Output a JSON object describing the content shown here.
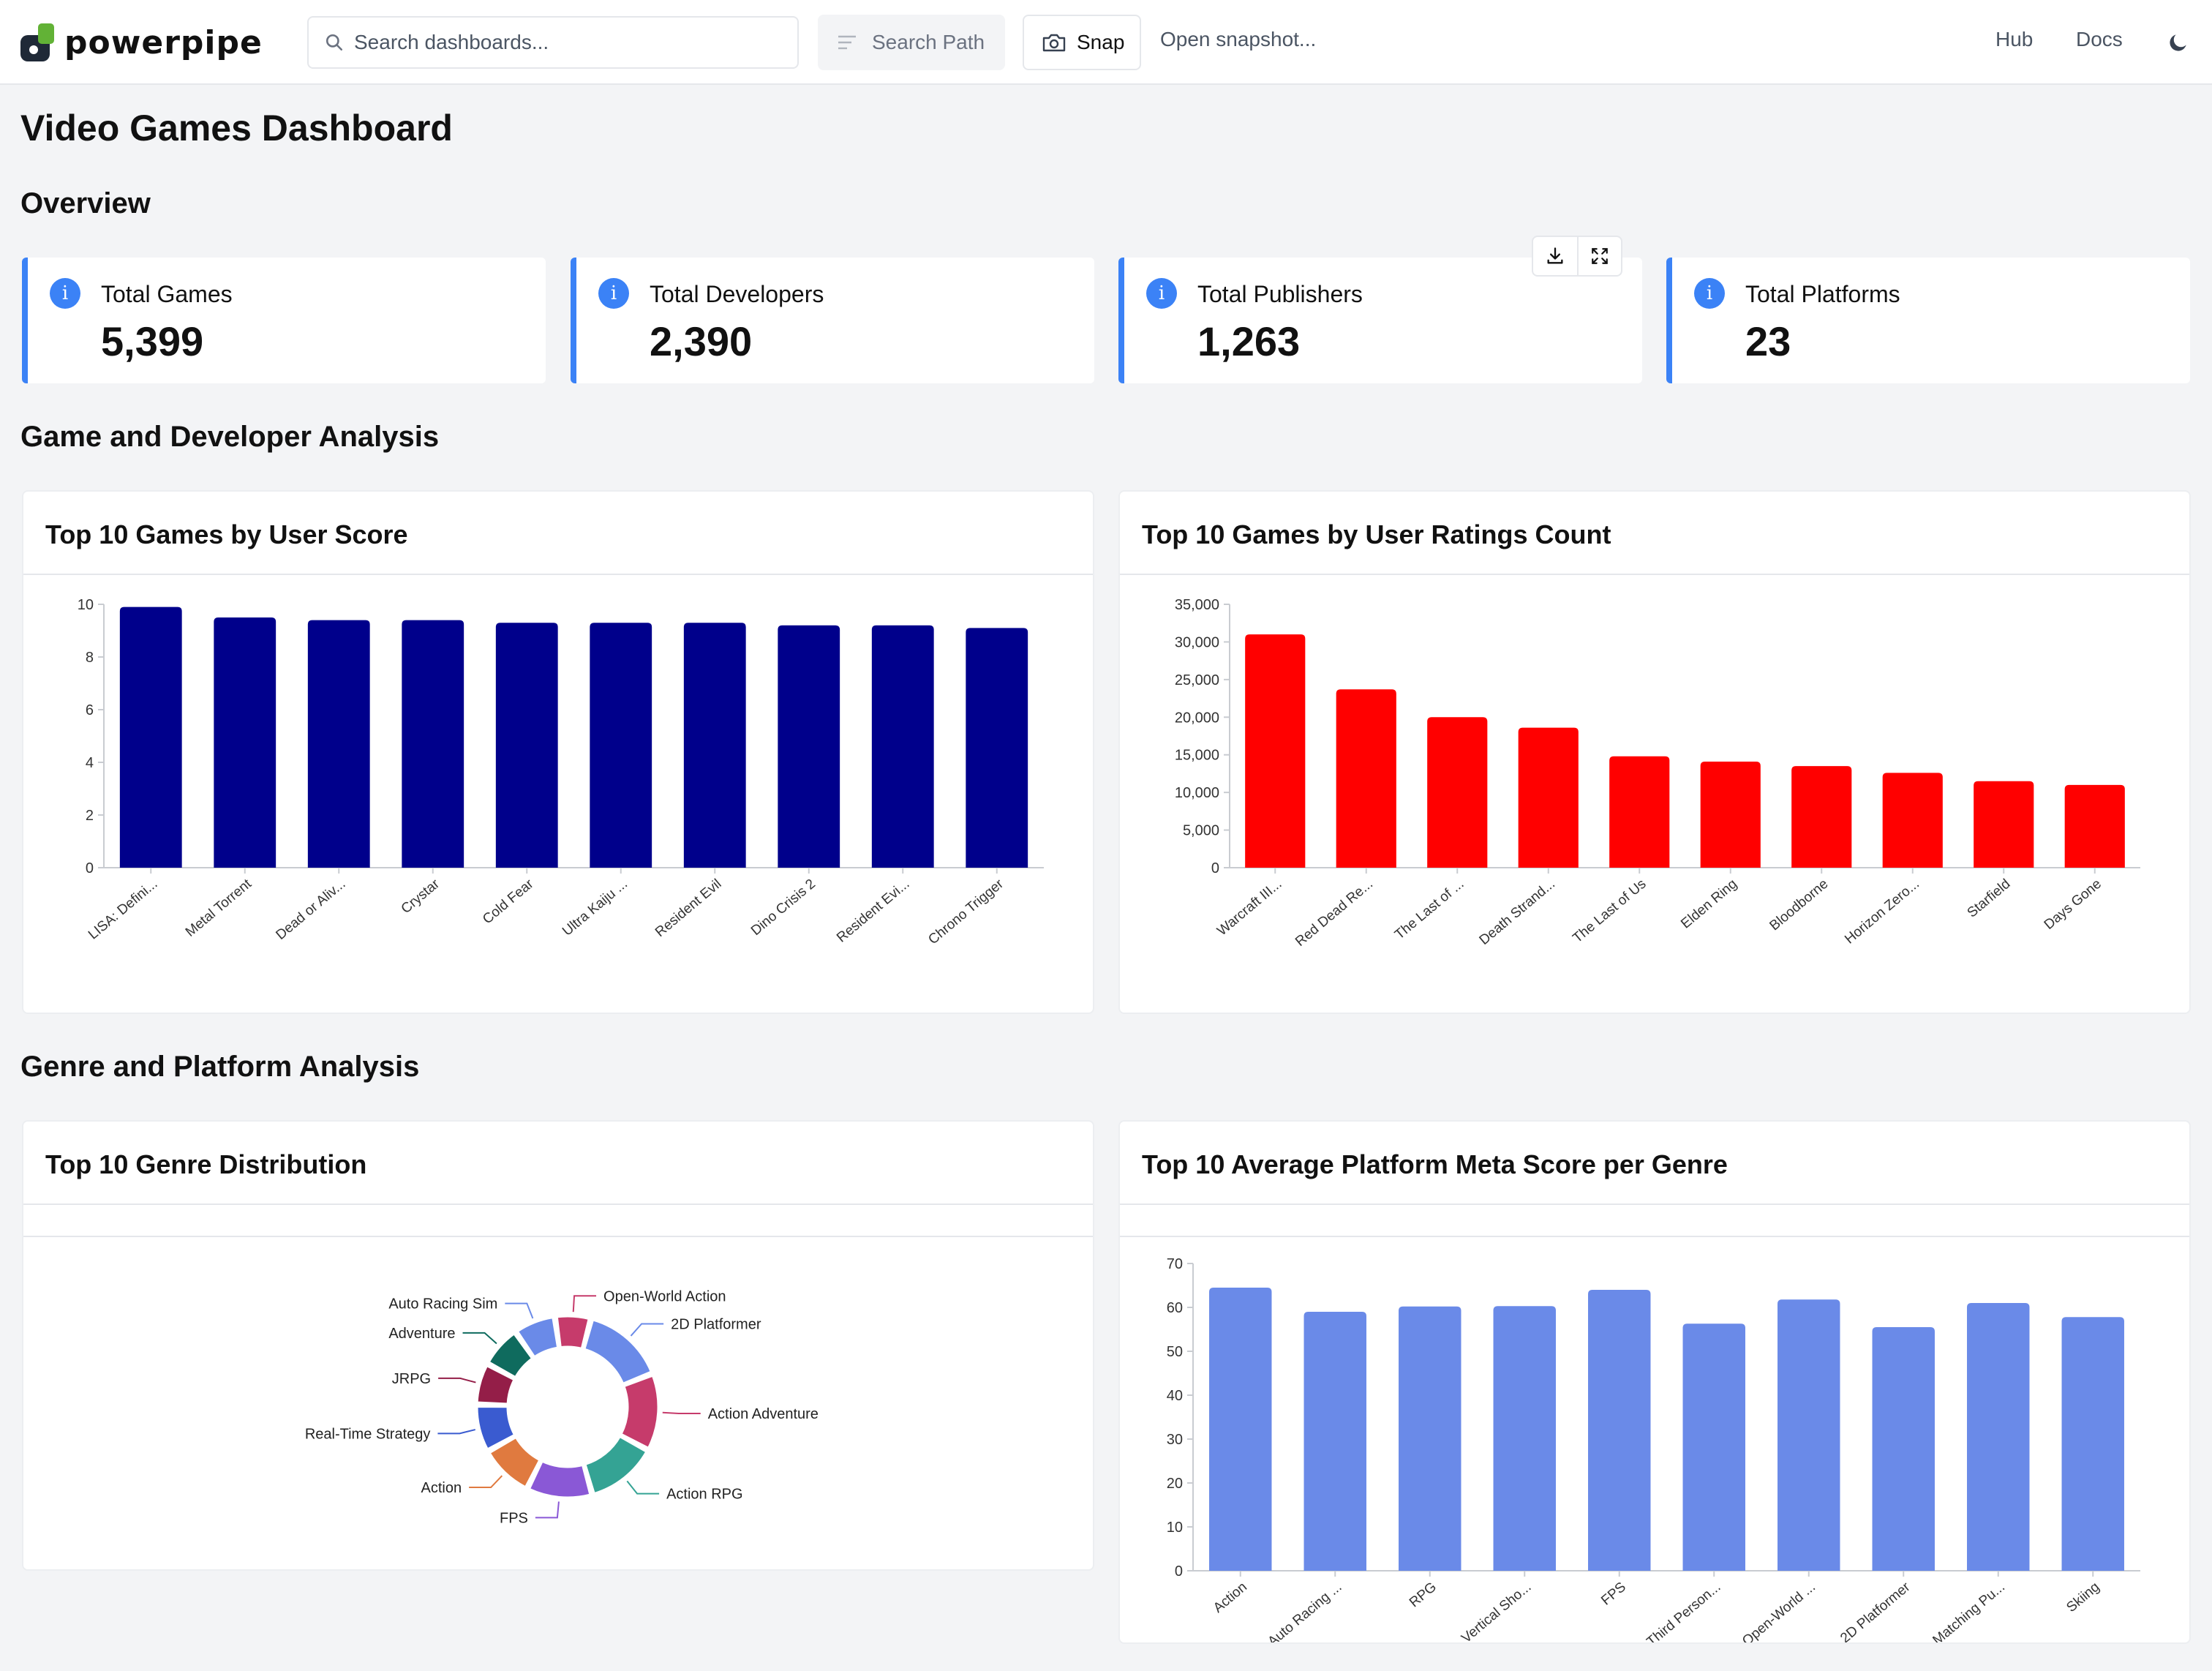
{
  "app": {
    "name": "powerpipe"
  },
  "topbar": {
    "search_placeholder": "Search dashboards...",
    "search_path_label": "Search Path",
    "snap_label": "Snap",
    "open_snapshot_label": "Open snapshot...",
    "hub_label": "Hub",
    "docs_label": "Docs",
    "theme_icon": "moon-icon"
  },
  "page": {
    "title": "Video Games Dashboard",
    "sections": {
      "overview": "Overview",
      "game_dev": "Game and Developer Analysis",
      "genre_platform": "Genre and Platform Analysis"
    }
  },
  "cards": [
    {
      "label": "Total Games",
      "value": "5,399"
    },
    {
      "label": "Total Developers",
      "value": "2,390"
    },
    {
      "label": "Total Publishers",
      "value": "1,263"
    },
    {
      "label": "Total Platforms",
      "value": "23"
    }
  ],
  "colors": {
    "accent": "#3b82f6",
    "navy_bar": "#00008b",
    "red_bar": "#ff0000",
    "blue_bar": "#6a8ae8"
  },
  "chart_data": [
    {
      "id": "user_score",
      "type": "bar",
      "title": "Top 10 Games by User Score",
      "categories": [
        "LISA: Defini...",
        "Metal Torrent",
        "Dead or Aliv...",
        "Crystar",
        "Cold Fear",
        "Ultra Kaiju ...",
        "Resident Evil",
        "Dino Crisis 2",
        "Resident Evi...",
        "Chrono Trigger"
      ],
      "values": [
        9.9,
        9.5,
        9.4,
        9.4,
        9.3,
        9.3,
        9.3,
        9.2,
        9.2,
        9.1
      ],
      "ylim": [
        0,
        10
      ],
      "yticks": [
        0,
        2,
        4,
        6,
        8,
        10
      ],
      "ytick_labels": [
        "0",
        "2",
        "4",
        "6",
        "8",
        "10"
      ],
      "color": "#00008b"
    },
    {
      "id": "ratings_count",
      "type": "bar",
      "title": "Top 10 Games by User Ratings Count",
      "categories": [
        "Warcraft III...",
        "Red Dead Re...",
        "The Last of ...",
        "Death Strand...",
        "The Last of Us",
        "Elden Ring",
        "Bloodborne",
        "Horizon Zero...",
        "Starfield",
        "Days Gone"
      ],
      "values": [
        31000,
        23700,
        20000,
        18600,
        14800,
        14100,
        13500,
        12600,
        11500,
        11000
      ],
      "ylim": [
        0,
        35000
      ],
      "yticks": [
        0,
        5000,
        10000,
        15000,
        20000,
        25000,
        30000,
        35000
      ],
      "ytick_labels": [
        "0",
        "5,000",
        "10,000",
        "15,000",
        "20,000",
        "25,000",
        "30,000",
        "35,000"
      ],
      "color": "#ff0000"
    },
    {
      "id": "genre_distribution",
      "type": "pie",
      "title": "Top 10 Genre Distribution",
      "categories": [
        "2D Platformer",
        "Action Adventure",
        "Action RPG",
        "FPS",
        "Action",
        "Real-Time Strategy",
        "JRPG",
        "Adventure",
        "Auto Racing Sim",
        "Open-World Action"
      ],
      "values": [
        14,
        13,
        12,
        11,
        9,
        8,
        7,
        7,
        7,
        6
      ],
      "colors": [
        "#6a8ae8",
        "#c63b6b",
        "#34a394",
        "#8a58d6",
        "#e07a3f",
        "#3a5bd0",
        "#941e48",
        "#0f6b5e",
        "#6a8ae8",
        "#c63b6b"
      ]
    },
    {
      "id": "platform_meta",
      "type": "bar",
      "title": "Top 10 Average Platform Meta Score per Genre",
      "categories": [
        "Action",
        "Auto Racing ...",
        "RPG",
        "Vertical Sho...",
        "FPS",
        "Third Person...",
        "Open-World ...",
        "2D Platformer",
        "Matching Pu...",
        "Skiing"
      ],
      "values": [
        64.5,
        59,
        60.2,
        60.3,
        64,
        56.3,
        61.8,
        55.5,
        61,
        57.8
      ],
      "ylim": [
        0,
        70
      ],
      "yticks": [
        0,
        10,
        20,
        30,
        40,
        50,
        60,
        70
      ],
      "ytick_labels": [
        "0",
        "10",
        "20",
        "30",
        "40",
        "50",
        "60",
        "70"
      ],
      "color": "#6a8ae8"
    }
  ]
}
